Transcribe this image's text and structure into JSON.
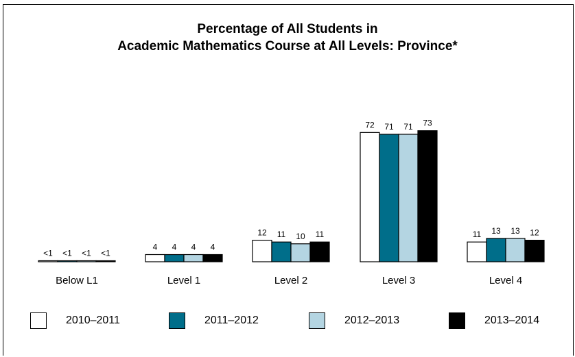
{
  "chart_data": {
    "type": "bar",
    "title_lines": [
      "Percentage of All Students in",
      "Academic Mathematics Course at All Levels: Province*"
    ],
    "categories": [
      "Below L1",
      "Level 1",
      "Level 2",
      "Level 3",
      "Level 4"
    ],
    "series": [
      {
        "name": "2010–2011",
        "color": "#ffffff",
        "values": [
          0.5,
          4,
          12,
          72,
          11
        ],
        "labels": [
          "<1",
          "4",
          "12",
          "72",
          "11"
        ]
      },
      {
        "name": "2011–2012",
        "color": "#006e8a",
        "values": [
          0.5,
          4,
          11,
          71,
          13
        ],
        "labels": [
          "<1",
          "4",
          "11",
          "71",
          "13"
        ]
      },
      {
        "name": "2012–2013",
        "color": "#b4d5e2",
        "values": [
          0.5,
          4,
          10,
          71,
          13
        ],
        "labels": [
          "<1",
          "4",
          "10",
          "71",
          "13"
        ]
      },
      {
        "name": "2013–2014",
        "color": "#000000",
        "values": [
          0.5,
          4,
          11,
          73,
          12
        ],
        "labels": [
          "<1",
          "4",
          "11",
          "73",
          "12"
        ]
      }
    ],
    "ylim": [
      0,
      100
    ],
    "legend": "bottom",
    "grid": false
  }
}
